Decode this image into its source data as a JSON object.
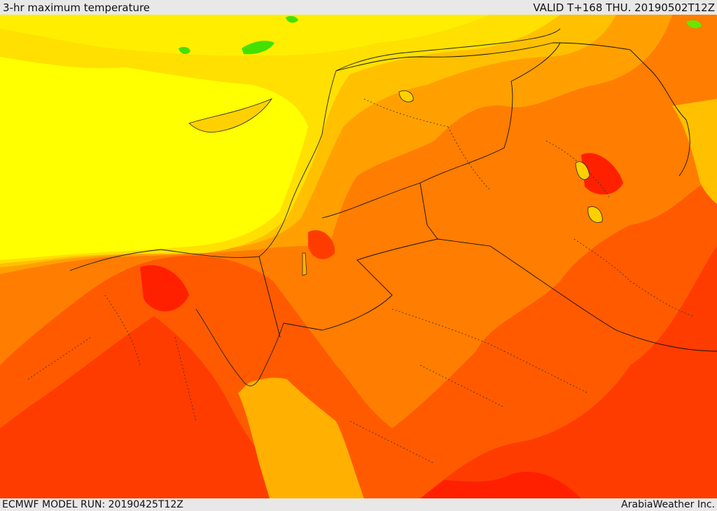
{
  "header": {
    "title": "3-hr maximum temperature",
    "valid_time": "VALID T+168 THU. 20190502T12Z"
  },
  "footer": {
    "model_run": "ECMWF MODEL RUN: 20190425T12Z",
    "credit": "ArabiaWeather Inc."
  },
  "map": {
    "colors": {
      "cool_green": "#44e000",
      "light_yellow": "#ffff00",
      "yellow": "#ffe000",
      "amber": "#ffc000",
      "light_orange": "#ffa000",
      "orange": "#ff7d00",
      "dark_orange": "#ff5a00",
      "red_orange": "#ff3c00",
      "red": "#ff2000"
    }
  }
}
